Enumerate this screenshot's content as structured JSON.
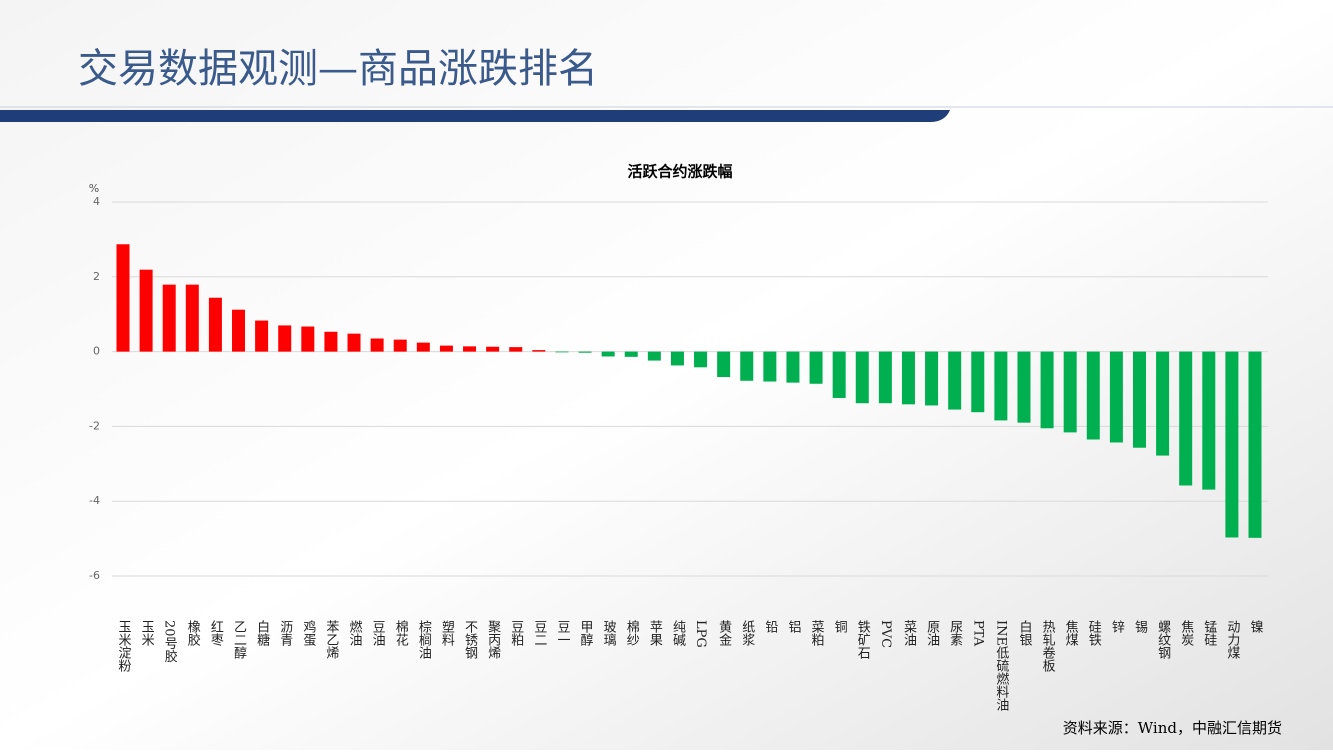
{
  "header": {
    "title": "交易数据观测—商品涨跌排名"
  },
  "chart_data": {
    "type": "bar",
    "title": "活跃合约涨跌幅",
    "y_unit": "%",
    "categories": [
      "玉米淀粉",
      "玉米",
      "20号胶",
      "橡胶",
      "红枣",
      "乙二醇",
      "白糖",
      "沥青",
      "鸡蛋",
      "苯乙烯",
      "燃油",
      "豆油",
      "棉花",
      "棕榈油",
      "塑料",
      "不锈钢",
      "聚丙烯",
      "豆粕",
      "豆二",
      "豆一",
      "甲醇",
      "玻璃",
      "棉纱",
      "苹果",
      "纯碱",
      "LPG",
      "黄金",
      "纸浆",
      "铅",
      "铝",
      "菜粕",
      "铜",
      "铁矿石",
      "PVC",
      "菜油",
      "原油",
      "尿素",
      "PTA",
      "INE低硫燃料油",
      "白银",
      "热轧卷板",
      "焦煤",
      "硅铁",
      "锌",
      "锡",
      "螺纹钢",
      "焦炭",
      "锰硅",
      "动力煤",
      "镍"
    ],
    "values": [
      2.87,
      2.19,
      1.79,
      1.79,
      1.44,
      1.12,
      0.83,
      0.7,
      0.67,
      0.53,
      0.48,
      0.35,
      0.32,
      0.24,
      0.16,
      0.14,
      0.13,
      0.12,
      0.04,
      -0.02,
      -0.03,
      -0.13,
      -0.14,
      -0.24,
      -0.37,
      -0.42,
      -0.68,
      -0.78,
      -0.8,
      -0.83,
      -0.86,
      -1.24,
      -1.38,
      -1.38,
      -1.41,
      -1.44,
      -1.55,
      -1.62,
      -1.84,
      -1.9,
      -2.05,
      -2.16,
      -2.35,
      -2.43,
      -2.57,
      -2.78,
      -3.58,
      -3.69,
      -4.97,
      -4.98
    ],
    "positive_color": "#ff0000",
    "negative_color": "#00b050",
    "ylim": [
      -6,
      4
    ],
    "yticks": [
      -6,
      -4,
      -2,
      0,
      2,
      4
    ],
    "grid": true
  },
  "source": "资料来源：Wind，中融汇信期货"
}
